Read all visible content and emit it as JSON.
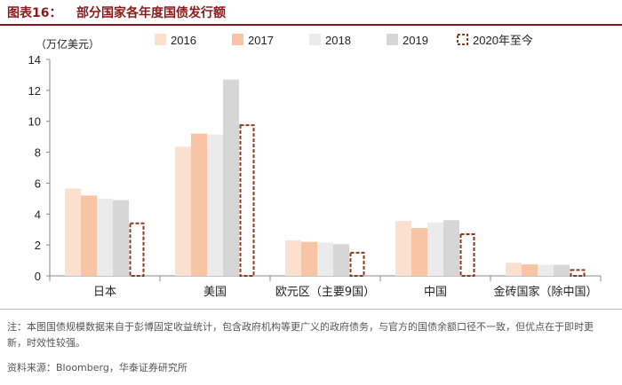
{
  "header": {
    "fig_label": "图表16：",
    "fig_title": "部分国家各年度国债发行额"
  },
  "footer": {
    "note": "注：本图国债规模数据来自于彭博固定收益统计，包含政府机构等更广义的政府债务，与官方的国债余额口径不一致，但优点在于即时更新，时效性较强。",
    "source": "资料来源：Bloomberg，华泰证券研究所"
  },
  "chart_data": {
    "type": "bar",
    "title": "",
    "ylabel": "（万亿美元）",
    "xlabel": "",
    "ylim": [
      0,
      14
    ],
    "yticks": [
      0,
      2,
      4,
      6,
      8,
      10,
      12,
      14
    ],
    "grid": false,
    "legend_position": "top",
    "categories": [
      "日本",
      "美国",
      "欧元区（主要9国）",
      "中国",
      "金砖国家（除中国）"
    ],
    "series": [
      {
        "name": "2016",
        "color": "#fbe0cf",
        "style": "solid",
        "values": [
          5.65,
          8.35,
          2.3,
          3.55,
          0.85
        ]
      },
      {
        "name": "2017",
        "color": "#f8c4a3",
        "style": "solid",
        "values": [
          5.2,
          9.2,
          2.2,
          3.1,
          0.75
        ]
      },
      {
        "name": "2018",
        "color": "#ebebeb",
        "style": "solid",
        "values": [
          5.0,
          9.15,
          2.15,
          3.45,
          0.72
        ]
      },
      {
        "name": "2019",
        "color": "#d6d6d6",
        "style": "solid",
        "values": [
          4.9,
          12.7,
          2.05,
          3.6,
          0.72
        ]
      },
      {
        "name": "2020年至今",
        "color": "#8b3a1a",
        "style": "dashed",
        "values": [
          3.4,
          9.75,
          1.5,
          2.7,
          0.38
        ]
      }
    ]
  }
}
